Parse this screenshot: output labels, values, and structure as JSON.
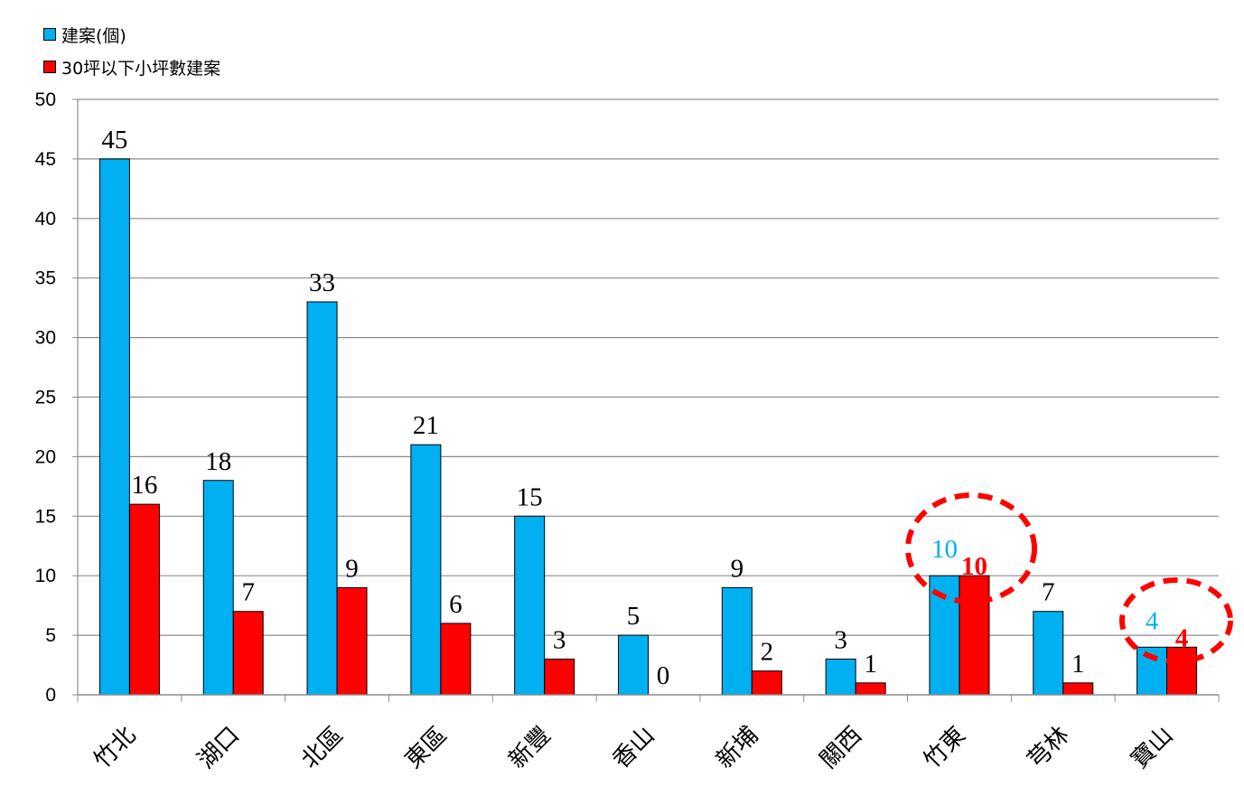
{
  "legend": [
    {
      "label": "建案(個)",
      "color": "#00B0F0"
    },
    {
      "label": "30坪以下小坪數建案",
      "color": "#FF0000"
    }
  ],
  "chart_data": {
    "type": "bar",
    "title": "",
    "xlabel": "",
    "ylabel": "",
    "ylim": [
      0,
      50
    ],
    "yticks": [
      0,
      5,
      10,
      15,
      20,
      25,
      30,
      35,
      40,
      45,
      50
    ],
    "grid": true,
    "legend_position": "top-left",
    "categories": [
      "竹北",
      "湖口",
      "北區",
      "東區",
      "新豐",
      "香山",
      "新埔",
      "關西",
      "竹東",
      "芎林",
      "寶山"
    ],
    "series": [
      {
        "name": "建案(個)",
        "color": "#00B0F0",
        "values": [
          45,
          18,
          33,
          21,
          15,
          5,
          9,
          3,
          10,
          7,
          4
        ]
      },
      {
        "name": "30坪以下小坪數建案",
        "color": "#FF0000",
        "values": [
          16,
          7,
          9,
          6,
          3,
          0,
          2,
          1,
          10,
          1,
          4
        ]
      }
    ],
    "annotations": [
      {
        "type": "dashed-circle",
        "color": "#FF0000",
        "category": "竹東",
        "note": "values highlighted 10 / 10"
      },
      {
        "type": "dashed-circle",
        "color": "#FF0000",
        "category": "寶山",
        "note": "values highlighted 4 / 4"
      }
    ],
    "highlighted_categories": [
      "竹東",
      "寶山"
    ]
  }
}
